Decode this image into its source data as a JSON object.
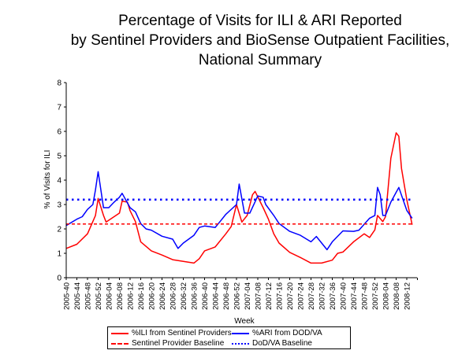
{
  "chart_data": {
    "type": "line",
    "title": [
      "Percentage of Visits for ILI & ARI Reported",
      "by Sentinel Providers and BioSense Outpatient Facilities,",
      "National Summary"
    ],
    "xlabel": "Week",
    "ylabel": "% of Visits for ILI",
    "ylim": [
      0,
      8
    ],
    "yticks": [
      "0",
      "1",
      "2",
      "3",
      "4",
      "5",
      "6",
      "7",
      "8"
    ],
    "xlim_weeks": [
      0,
      130
    ],
    "xtick_labels": [
      "2005-40",
      "2005-44",
      "2005-48",
      "2005-52",
      "2006-04",
      "2006-08",
      "2006-12",
      "2006-16",
      "2006-20",
      "2006-24",
      "2006-28",
      "2006-32",
      "2006-36",
      "2006-40",
      "2006-44",
      "2006-48",
      "2006-52",
      "2007-04",
      "2007-08",
      "2007-12",
      "2007-16",
      "2007-20",
      "2007-24",
      "2007-28",
      "2007-32",
      "2007-36",
      "2007-40",
      "2007-44",
      "2007-48",
      "2007-52",
      "2008-04",
      "2008-08",
      "2008-12"
    ],
    "series": [
      {
        "name": "%ILI from Sentinel Providers",
        "color": "#ff0000",
        "style": "solid",
        "points": [
          [
            0,
            1.2
          ],
          [
            4,
            1.37
          ],
          [
            8,
            1.8
          ],
          [
            11,
            2.55
          ],
          [
            12,
            3.25
          ],
          [
            14,
            2.55
          ],
          [
            15,
            2.28
          ],
          [
            20,
            2.65
          ],
          [
            21,
            3.14
          ],
          [
            23,
            3.1
          ],
          [
            24,
            2.75
          ],
          [
            26,
            2.3
          ],
          [
            28,
            1.47
          ],
          [
            32,
            1.1
          ],
          [
            36,
            0.93
          ],
          [
            40,
            0.74
          ],
          [
            44,
            0.67
          ],
          [
            48,
            0.6
          ],
          [
            50,
            0.78
          ],
          [
            52,
            1.1
          ],
          [
            56,
            1.26
          ],
          [
            60,
            1.8
          ],
          [
            62,
            2.1
          ],
          [
            64,
            3.0
          ],
          [
            66,
            2.28
          ],
          [
            68,
            2.55
          ],
          [
            70,
            3.4
          ],
          [
            71,
            3.54
          ],
          [
            74,
            2.87
          ],
          [
            76,
            2.4
          ],
          [
            78,
            1.8
          ],
          [
            80,
            1.42
          ],
          [
            84,
            1.04
          ],
          [
            88,
            0.83
          ],
          [
            92,
            0.6
          ],
          [
            96,
            0.6
          ],
          [
            100,
            0.72
          ],
          [
            102,
            1.0
          ],
          [
            104,
            1.05
          ],
          [
            108,
            1.47
          ],
          [
            112,
            1.8
          ],
          [
            114,
            1.65
          ],
          [
            116,
            1.96
          ],
          [
            117,
            2.55
          ],
          [
            119,
            2.3
          ],
          [
            120,
            2.5
          ],
          [
            122,
            4.9
          ],
          [
            124,
            5.94
          ],
          [
            125,
            5.8
          ],
          [
            126,
            4.48
          ],
          [
            128,
            3.2
          ],
          [
            130,
            2.17
          ]
        ]
      },
      {
        "name": "%ARI from DOD/VA",
        "color": "#0000ff",
        "style": "solid",
        "points": [
          [
            0,
            2.14
          ],
          [
            4,
            2.4
          ],
          [
            6,
            2.5
          ],
          [
            8,
            2.8
          ],
          [
            10,
            3.0
          ],
          [
            11,
            3.6
          ],
          [
            12,
            4.35
          ],
          [
            14,
            2.87
          ],
          [
            16,
            2.87
          ],
          [
            18,
            3.1
          ],
          [
            20,
            3.3
          ],
          [
            21,
            3.46
          ],
          [
            24,
            2.87
          ],
          [
            26,
            2.7
          ],
          [
            28,
            2.22
          ],
          [
            30,
            2.0
          ],
          [
            32,
            1.95
          ],
          [
            36,
            1.7
          ],
          [
            40,
            1.58
          ],
          [
            42,
            1.2
          ],
          [
            44,
            1.42
          ],
          [
            48,
            1.74
          ],
          [
            50,
            2.06
          ],
          [
            52,
            2.12
          ],
          [
            56,
            2.06
          ],
          [
            58,
            2.33
          ],
          [
            60,
            2.6
          ],
          [
            64,
            3.0
          ],
          [
            65,
            3.84
          ],
          [
            67,
            2.65
          ],
          [
            69,
            2.65
          ],
          [
            72,
            3.35
          ],
          [
            74,
            3.3
          ],
          [
            75,
            3.0
          ],
          [
            78,
            2.55
          ],
          [
            80,
            2.22
          ],
          [
            84,
            1.9
          ],
          [
            88,
            1.74
          ],
          [
            92,
            1.47
          ],
          [
            94,
            1.69
          ],
          [
            98,
            1.15
          ],
          [
            100,
            1.47
          ],
          [
            104,
            1.92
          ],
          [
            108,
            1.9
          ],
          [
            110,
            1.95
          ],
          [
            114,
            2.44
          ],
          [
            116,
            2.55
          ],
          [
            117,
            3.7
          ],
          [
            118,
            3.4
          ],
          [
            119,
            2.55
          ],
          [
            120,
            2.55
          ],
          [
            122,
            3.1
          ],
          [
            124,
            3.5
          ],
          [
            125,
            3.7
          ],
          [
            128,
            2.76
          ],
          [
            130,
            2.44
          ]
        ]
      },
      {
        "name": "Sentinel Provider Baseline",
        "color": "#ff0000",
        "style": "dashed",
        "value": 2.2
      },
      {
        "name": "DoD/VA Baseline",
        "color": "#0000ff",
        "style": "dotted",
        "value": 3.2
      }
    ],
    "legend_position": "bottom"
  }
}
